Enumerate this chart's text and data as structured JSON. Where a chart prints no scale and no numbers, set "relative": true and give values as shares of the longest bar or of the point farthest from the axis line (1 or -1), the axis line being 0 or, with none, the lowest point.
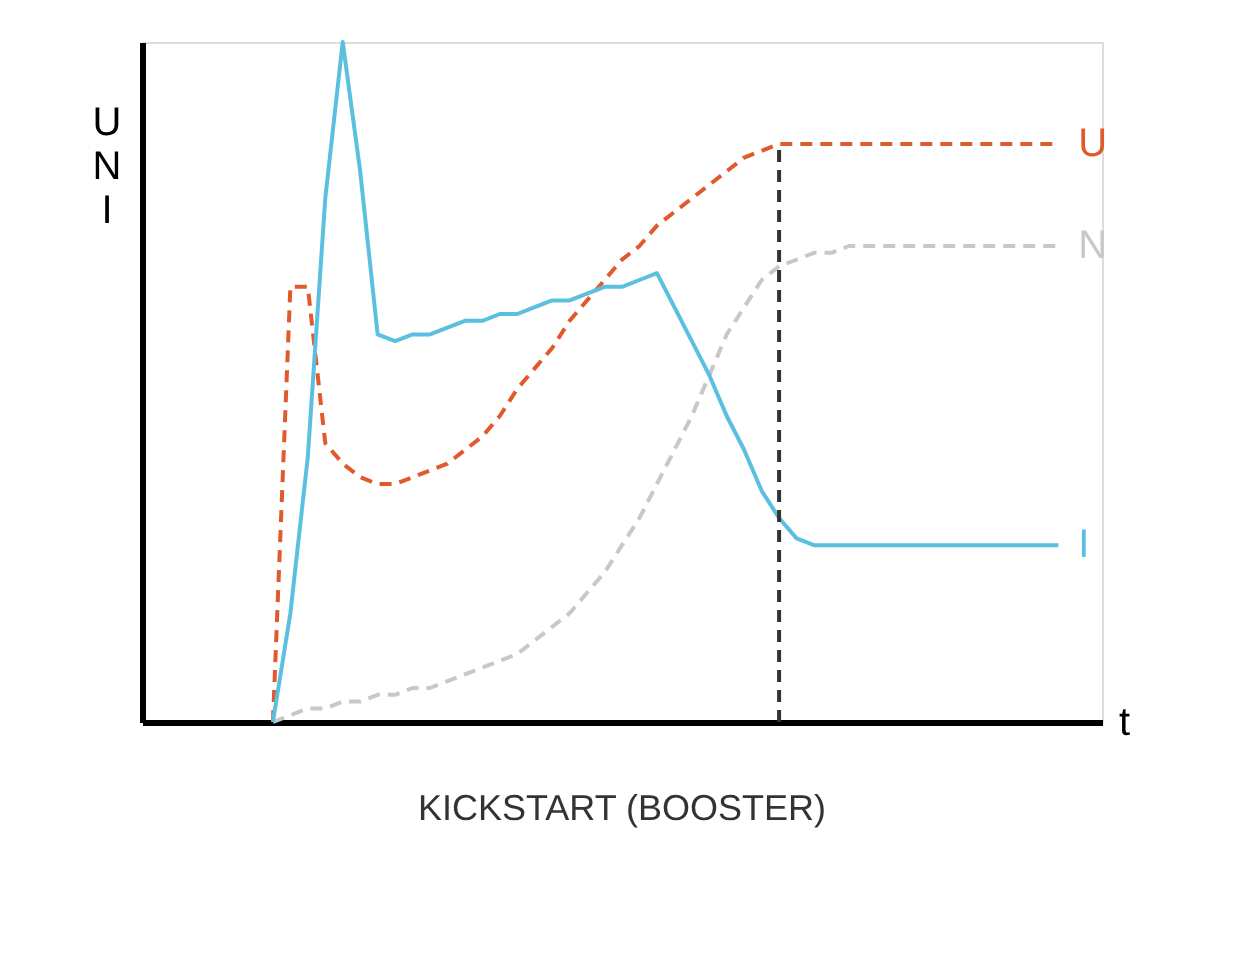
{
  "chart_data": {
    "type": "line",
    "title": "KICKSTART (BOOSTER)",
    "xlabel": "t",
    "ylabel": "U N I",
    "relative": true,
    "tick_labels": false,
    "grid": false,
    "legend": false,
    "marker": "none",
    "categories": [
      null,
      null,
      null,
      null,
      null,
      null,
      null,
      null,
      null,
      null,
      null,
      null,
      null,
      null,
      null,
      null,
      null,
      null,
      null,
      null,
      null,
      null,
      null,
      null,
      null,
      null,
      null,
      null,
      null,
      null,
      null,
      null,
      null,
      null,
      null,
      null,
      null,
      null,
      null,
      null,
      null,
      null,
      null,
      null,
      null,
      null,
      null,
      null,
      null,
      null,
      null,
      null
    ],
    "series": [
      {
        "name": "U",
        "color": "#e05a2b",
        "line_style": "dashed",
        "values": [
          null,
          null,
          null,
          null,
          null,
          null,
          0,
          0.64,
          0.64,
          0.41,
          0.38,
          0.36,
          0.35,
          0.35,
          0.36,
          0.37,
          0.38,
          0.4,
          0.42,
          0.45,
          0.49,
          0.52,
          0.55,
          0.59,
          0.62,
          0.65,
          0.68,
          0.7,
          0.73,
          0.75,
          0.77,
          0.79,
          0.81,
          0.83,
          0.84,
          0.85,
          0.85,
          0.85,
          0.85,
          0.85,
          0.85,
          0.85,
          0.85,
          0.85,
          0.85,
          0.85,
          0.85,
          0.85,
          0.85,
          0.85,
          0.85,
          0.85
        ]
      },
      {
        "name": "N",
        "color": "#c8c8c8",
        "line_style": "dashed",
        "values": [
          null,
          null,
          null,
          null,
          null,
          null,
          0,
          0.01,
          0.02,
          0.02,
          0.03,
          0.03,
          0.04,
          0.04,
          0.05,
          0.05,
          0.06,
          0.07,
          0.08,
          0.09,
          0.1,
          0.12,
          0.14,
          0.16,
          0.19,
          0.22,
          0.26,
          0.3,
          0.35,
          0.4,
          0.45,
          0.51,
          0.57,
          0.61,
          0.65,
          0.67,
          0.68,
          0.69,
          0.69,
          0.7,
          0.7,
          0.7,
          0.7,
          0.7,
          0.7,
          0.7,
          0.7,
          0.7,
          0.7,
          0.7,
          0.7,
          0.7
        ]
      },
      {
        "name": "I",
        "color": "#5bc0e0",
        "line_style": "solid",
        "values": [
          null,
          null,
          null,
          null,
          null,
          null,
          0,
          0.16,
          0.39,
          0.77,
          1.0,
          0.81,
          0.57,
          0.56,
          0.57,
          0.57,
          0.58,
          0.59,
          0.59,
          0.6,
          0.6,
          0.61,
          0.62,
          0.62,
          0.63,
          0.64,
          0.64,
          0.65,
          0.66,
          0.61,
          0.56,
          0.51,
          0.45,
          0.4,
          0.34,
          0.3,
          0.27,
          0.26,
          0.26,
          0.26,
          0.26,
          0.26,
          0.26,
          0.26,
          0.26,
          0.26,
          0.26,
          0.26,
          0.26,
          0.26,
          0.26,
          0.26
        ]
      }
    ]
  }
}
